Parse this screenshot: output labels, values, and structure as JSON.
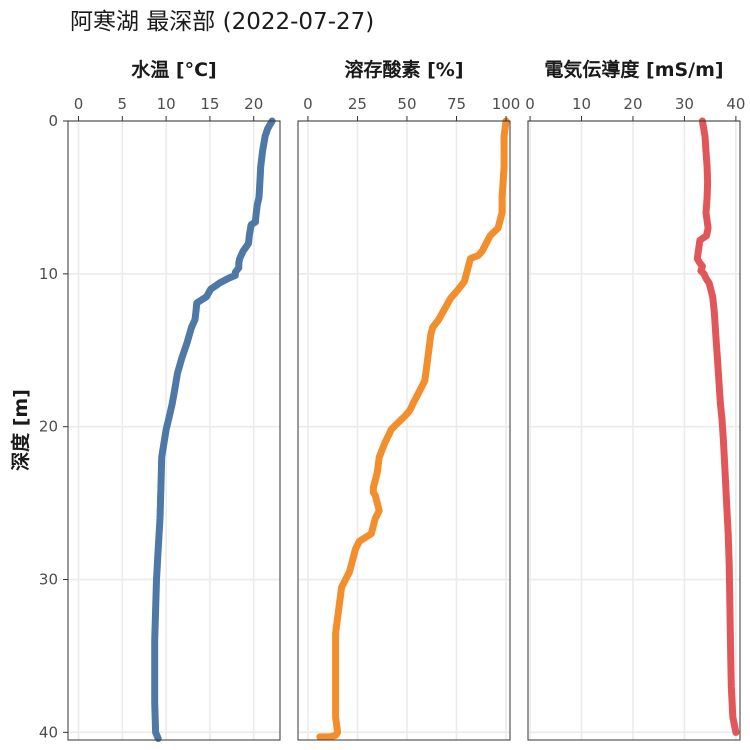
{
  "title": "阿寒湖 最深部 (2022-07-27)",
  "chart_data": {
    "type": "line",
    "ylabel": "深度 [m]",
    "ylim": [
      40.5,
      0
    ],
    "yticks": [
      0,
      10,
      20,
      30,
      40
    ],
    "grid": true,
    "panels": [
      {
        "name": "水温 [°C]",
        "color": "#4E79A7",
        "xlim": [
          -1.2,
          23
        ],
        "xticks": [
          0,
          5,
          10,
          15,
          20
        ],
        "x": [
          22.1,
          21.6,
          21.3,
          21.0,
          20.8,
          20.7,
          20.6,
          20.4,
          20.3,
          20.2,
          20.2,
          19.7,
          19.5,
          19.4,
          19.3,
          18.8,
          18.4,
          18.3,
          18.3,
          17.9,
          17.9,
          17.1,
          16.1,
          15.6,
          15.1,
          14.6,
          13.5,
          13.4,
          13.3,
          12.9,
          12.4,
          11.8,
          11.3,
          11.0,
          10.7,
          10.3,
          10.0,
          9.5,
          9.4,
          9.3,
          9.1,
          8.9,
          8.8,
          8.7,
          8.7,
          8.8,
          9.1
        ],
        "y": [
          0,
          0.5,
          1.0,
          2.0,
          3.0,
          4.0,
          5.0,
          5.5,
          6.0,
          6.5,
          6.6,
          6.8,
          7.5,
          8.0,
          8.1,
          8.5,
          9.0,
          9.3,
          9.6,
          9.9,
          10.1,
          10.3,
          10.6,
          10.8,
          11.0,
          11.5,
          11.9,
          12.5,
          13.0,
          13.5,
          14.5,
          15.5,
          16.5,
          17.5,
          18.5,
          19.5,
          20.2,
          22.0,
          24.0,
          26.0,
          28.0,
          30.0,
          32.0,
          34.0,
          38.0,
          40.0,
          40.4
        ]
      },
      {
        "name": "溶存酸素 [%]",
        "color": "#F28E2B",
        "xlim": [
          -5,
          102
        ],
        "xticks": [
          0,
          25,
          50,
          75,
          100
        ],
        "x": [
          100,
          99,
          99,
          98,
          98,
          97,
          96,
          92,
          90,
          88,
          86,
          84,
          82,
          81,
          79,
          76,
          72,
          69,
          66,
          63,
          62,
          61,
          60,
          59,
          57,
          55,
          53,
          52,
          51,
          49,
          45,
          42,
          41,
          39,
          36,
          35,
          34,
          33,
          33,
          34,
          35,
          36,
          34,
          33,
          32,
          26,
          24,
          23,
          21,
          17,
          16,
          15,
          14,
          14,
          14,
          14,
          15,
          14,
          11,
          6
        ],
        "y": [
          0,
          1,
          3,
          5,
          6,
          6.5,
          7,
          7.5,
          8.0,
          8.5,
          8.8,
          8.9,
          9.0,
          9.5,
          10.5,
          11.0,
          11.6,
          12.3,
          13.0,
          13.5,
          14.0,
          15.0,
          16.0,
          17.0,
          17.5,
          18.0,
          18.5,
          18.8,
          19.0,
          19.3,
          19.8,
          20.2,
          20.5,
          21.0,
          22.0,
          23.0,
          23.5,
          24.0,
          24.3,
          24.5,
          25.0,
          25.5,
          26.0,
          26.5,
          27.0,
          27.5,
          28.0,
          28.5,
          29.5,
          30.5,
          31.5,
          32.5,
          33.5,
          35.0,
          37.0,
          39.0,
          40.0,
          40.2,
          40.3,
          40.3
        ]
      },
      {
        "name": "電気伝導度 [mS/m]",
        "color": "#E15759",
        "xlim": [
          -0.4,
          40.8
        ],
        "xticks": [
          0,
          10,
          20,
          30,
          40
        ],
        "x": [
          33.5,
          34.0,
          34.2,
          34.4,
          34.5,
          34.4,
          34.2,
          34.6,
          34.3,
          33.0,
          32.8,
          32.5,
          33.0,
          33.5,
          33.2,
          33.8,
          34.2,
          34.8,
          35.5,
          35.8,
          36.0,
          36.2,
          36.4,
          36.6,
          36.8,
          37.0,
          37.3,
          37.6,
          37.9,
          38.2,
          38.5,
          38.7,
          38.8,
          38.9,
          39.0,
          39.1,
          39.4,
          40.0
        ],
        "y": [
          0,
          1.0,
          2.0,
          3.0,
          4.0,
          5.0,
          6.0,
          7.0,
          7.5,
          7.8,
          8.3,
          9.0,
          9.3,
          9.5,
          9.8,
          10.0,
          10.3,
          10.6,
          11.5,
          12.5,
          13.5,
          14.5,
          15.5,
          16.5,
          17.5,
          18.5,
          19.5,
          21.0,
          23.0,
          25.0,
          27.0,
          29.0,
          31.0,
          33.0,
          35.0,
          37.0,
          39.0,
          40.0
        ]
      }
    ]
  }
}
